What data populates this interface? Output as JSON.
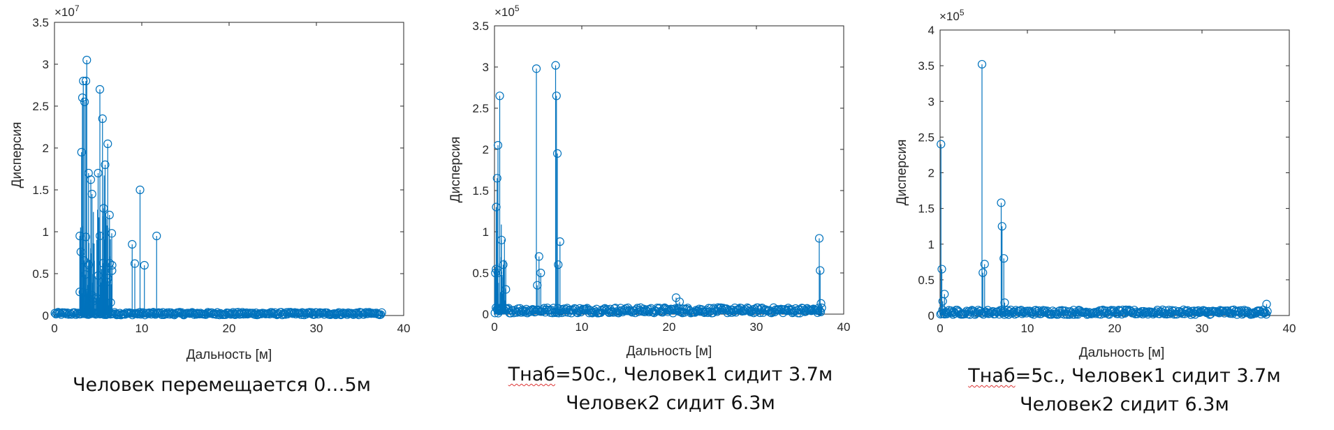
{
  "chart_data": [
    {
      "type": "stem",
      "xlabel": "Дальность [м]",
      "ylabel": "Дисперсия",
      "xlim": [
        0,
        40
      ],
      "ylim": [
        0,
        3.5
      ],
      "y_exponent_label": "×10^7",
      "y_multiplier": 10000000,
      "xticks": [
        "0",
        "10",
        "20",
        "30",
        "40"
      ],
      "yticks": [
        "0",
        "0.5",
        "1",
        "1.5",
        "2",
        "2.5",
        "3",
        "3.5"
      ],
      "caption": "Человек перемещается 0…5м",
      "peaks": [
        [
          2.9,
          0.95
        ],
        [
          3.1,
          1.95
        ],
        [
          3.2,
          2.6
        ],
        [
          3.3,
          2.8
        ],
        [
          3.45,
          2.55
        ],
        [
          3.6,
          2.8
        ],
        [
          3.7,
          3.05
        ],
        [
          3.9,
          1.7
        ],
        [
          4.3,
          1.45
        ],
        [
          5.0,
          1.7
        ],
        [
          5.2,
          2.7
        ],
        [
          5.5,
          2.35
        ],
        [
          5.8,
          1.8
        ],
        [
          6.1,
          2.05
        ],
        [
          6.3,
          1.2
        ],
        [
          6.6,
          0.6
        ],
        [
          8.9,
          0.85
        ],
        [
          9.2,
          0.62
        ],
        [
          9.8,
          1.5
        ],
        [
          10.3,
          0.6
        ],
        [
          11.7,
          0.95
        ]
      ],
      "baseline": 0.02
    },
    {
      "type": "stem",
      "xlabel": "Дальность [м]",
      "ylabel": "Дисперсия",
      "xlim": [
        0,
        40
      ],
      "ylim": [
        0,
        3.5
      ],
      "y_exponent_label": "×10^5",
      "y_multiplier": 100000,
      "xticks": [
        "0",
        "10",
        "20",
        "30",
        "40"
      ],
      "yticks": [
        "0",
        "0.5",
        "1",
        "1.5",
        "2",
        "2.5",
        "3",
        "3.5"
      ],
      "caption_line1_prefix": "Тнаб",
      "caption_line1_rest": "=50с., Человек1 сидит 3.7м",
      "caption_line2": "Человек2 сидит 6.3м",
      "peaks": [
        [
          0.1,
          0.5
        ],
        [
          0.2,
          1.3
        ],
        [
          0.3,
          1.65
        ],
        [
          0.4,
          2.05
        ],
        [
          0.6,
          2.65
        ],
        [
          0.8,
          0.9
        ],
        [
          1.0,
          0.6
        ],
        [
          1.3,
          0.3
        ],
        [
          4.8,
          2.98
        ],
        [
          4.9,
          0.35
        ],
        [
          5.1,
          0.7
        ],
        [
          5.3,
          0.5
        ],
        [
          7.0,
          3.02
        ],
        [
          7.1,
          2.65
        ],
        [
          7.2,
          1.95
        ],
        [
          7.3,
          0.6
        ],
        [
          7.5,
          0.88
        ],
        [
          20.8,
          0.2
        ],
        [
          21.2,
          0.15
        ],
        [
          37.2,
          0.92
        ],
        [
          37.3,
          0.53
        ],
        [
          37.4,
          0.13
        ]
      ],
      "baseline": 0.04
    },
    {
      "type": "stem",
      "xlabel": "Дальность [м]",
      "ylabel": "Дисперсия",
      "xlim": [
        0,
        40
      ],
      "ylim": [
        0,
        4
      ],
      "y_exponent_label": "×10^5",
      "y_multiplier": 100000,
      "xticks": [
        "0",
        "10",
        "20",
        "30",
        "40"
      ],
      "yticks": [
        "0",
        "0.5",
        "1",
        "1.5",
        "2",
        "2.5",
        "3",
        "3.5",
        "4"
      ],
      "caption_line1_prefix": "Тнаб",
      "caption_line1_rest": "=5с., Человек1 сидит 3.7м",
      "caption_line2": "Человек2 сидит 6.3м",
      "peaks": [
        [
          0.1,
          2.4
        ],
        [
          0.2,
          0.65
        ],
        [
          0.3,
          0.2
        ],
        [
          0.5,
          0.3
        ],
        [
          4.8,
          3.52
        ],
        [
          4.9,
          0.6
        ],
        [
          5.1,
          0.72
        ],
        [
          7.0,
          1.58
        ],
        [
          7.1,
          1.25
        ],
        [
          7.3,
          0.8
        ],
        [
          7.4,
          0.18
        ],
        [
          37.4,
          0.16
        ]
      ],
      "baseline": 0.04
    }
  ],
  "colors": {
    "stem": "#0072BD",
    "axis": "#262626",
    "text": "#262626",
    "squiggle": "#d33"
  }
}
